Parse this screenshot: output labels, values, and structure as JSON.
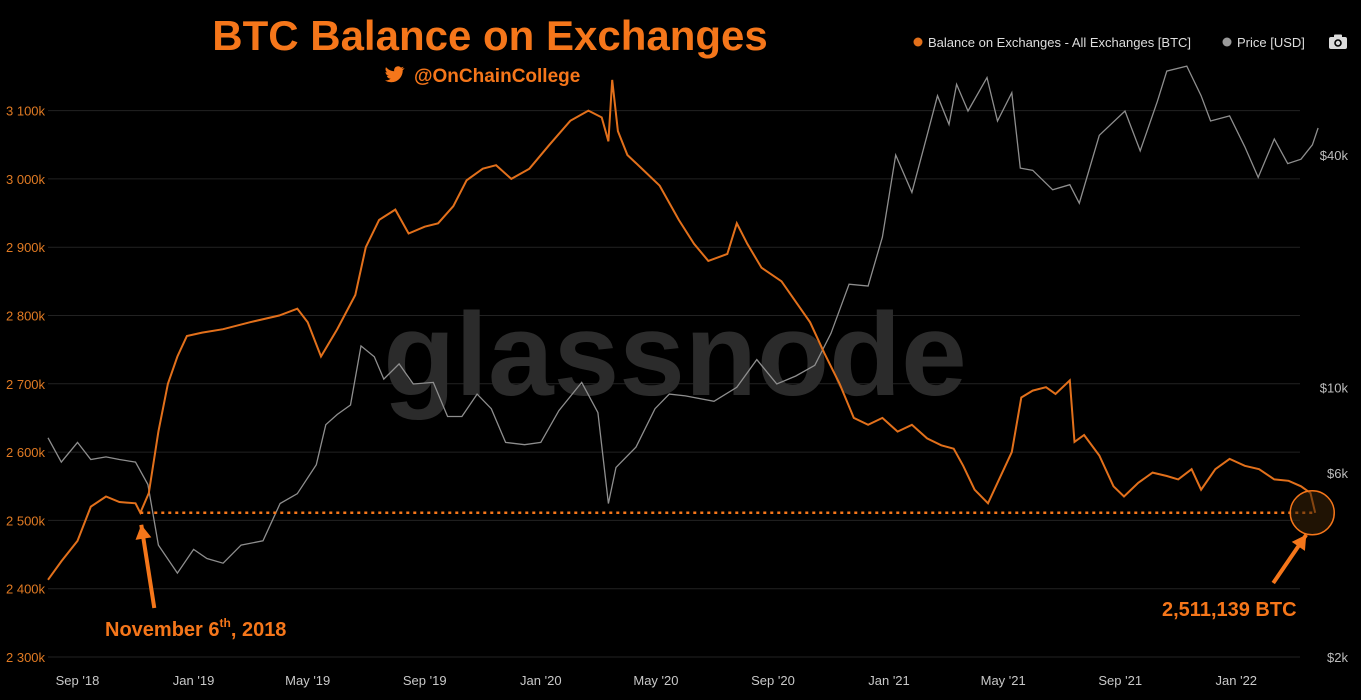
{
  "chart_data": {
    "type": "line",
    "title": "BTC Balance on Exchanges",
    "subtitle": "@OnChainCollege",
    "watermark": "glassnode",
    "x_ticks": [
      "Sep '18",
      "Jan '19",
      "May '19",
      "Sep '19",
      "Jan '20",
      "May '20",
      "Sep '20",
      "Jan '21",
      "May '21",
      "Sep '21",
      "Jan '22"
    ],
    "left_axis": {
      "ticks": [
        "2 300k",
        "2 400k",
        "2 500k",
        "2 600k",
        "2 700k",
        "2 800k",
        "2 900k",
        "3 000k",
        "3 100k"
      ],
      "ylim": [
        2300000,
        3150000
      ]
    },
    "right_axis": {
      "scale": "log",
      "ticks": [
        "$2k",
        "$6k",
        "$10k",
        "$40k"
      ]
    },
    "legend": {
      "position": "top-right",
      "items": [
        "Balance on Exchanges - All Exchanges [BTC]",
        "Price [USD]"
      ],
      "camera_icon": "camera-icon"
    },
    "series": [
      {
        "name": "Balance on Exchanges - All Exchanges [BTC]",
        "color": "#e2701b",
        "axis": "left",
        "points": [
          [
            "2018-08-01",
            2413000
          ],
          [
            "2018-08-15",
            2440000
          ],
          [
            "2018-09-01",
            2470000
          ],
          [
            "2018-09-15",
            2520000
          ],
          [
            "2018-10-01",
            2535000
          ],
          [
            "2018-10-15",
            2527000
          ],
          [
            "2018-11-01",
            2525000
          ],
          [
            "2018-11-06",
            2511139
          ],
          [
            "2018-11-15",
            2540000
          ],
          [
            "2018-11-25",
            2630000
          ],
          [
            "2018-12-05",
            2700000
          ],
          [
            "2018-12-15",
            2740000
          ],
          [
            "2018-12-25",
            2770000
          ],
          [
            "2019-01-10",
            2775000
          ],
          [
            "2019-02-01",
            2780000
          ],
          [
            "2019-03-01",
            2790000
          ],
          [
            "2019-04-01",
            2800000
          ],
          [
            "2019-04-20",
            2810000
          ],
          [
            "2019-05-01",
            2790000
          ],
          [
            "2019-05-15",
            2740000
          ],
          [
            "2019-06-01",
            2780000
          ],
          [
            "2019-06-20",
            2830000
          ],
          [
            "2019-07-01",
            2900000
          ],
          [
            "2019-07-15",
            2940000
          ],
          [
            "2019-08-01",
            2955000
          ],
          [
            "2019-08-15",
            2920000
          ],
          [
            "2019-09-01",
            2930000
          ],
          [
            "2019-09-15",
            2935000
          ],
          [
            "2019-10-01",
            2960000
          ],
          [
            "2019-10-15",
            2998000
          ],
          [
            "2019-11-01",
            3015000
          ],
          [
            "2019-11-15",
            3020000
          ],
          [
            "2019-12-01",
            3000000
          ],
          [
            "2019-12-20",
            3015000
          ],
          [
            "2020-01-10",
            3050000
          ],
          [
            "2020-02-01",
            3085000
          ],
          [
            "2020-02-20",
            3100000
          ],
          [
            "2020-03-05",
            3090000
          ],
          [
            "2020-03-12",
            3055000
          ],
          [
            "2020-03-16",
            3145000
          ],
          [
            "2020-03-22",
            3070000
          ],
          [
            "2020-04-01",
            3035000
          ],
          [
            "2020-04-20",
            3010000
          ],
          [
            "2020-05-05",
            2990000
          ],
          [
            "2020-05-25",
            2940000
          ],
          [
            "2020-06-10",
            2905000
          ],
          [
            "2020-06-25",
            2880000
          ],
          [
            "2020-07-15",
            2890000
          ],
          [
            "2020-07-25",
            2935000
          ],
          [
            "2020-08-05",
            2905000
          ],
          [
            "2020-08-20",
            2870000
          ],
          [
            "2020-09-10",
            2850000
          ],
          [
            "2020-09-25",
            2820000
          ],
          [
            "2020-10-10",
            2790000
          ],
          [
            "2020-10-25",
            2745000
          ],
          [
            "2020-11-10",
            2700000
          ],
          [
            "2020-11-25",
            2650000
          ],
          [
            "2020-12-10",
            2640000
          ],
          [
            "2020-12-25",
            2650000
          ],
          [
            "2021-01-10",
            2630000
          ],
          [
            "2021-01-25",
            2640000
          ],
          [
            "2021-02-10",
            2620000
          ],
          [
            "2021-02-25",
            2610000
          ],
          [
            "2021-03-10",
            2605000
          ],
          [
            "2021-03-20",
            2580000
          ],
          [
            "2021-04-01",
            2545000
          ],
          [
            "2021-04-15",
            2525000
          ],
          [
            "2021-04-25",
            2555000
          ],
          [
            "2021-05-10",
            2600000
          ],
          [
            "2021-05-20",
            2680000
          ],
          [
            "2021-06-01",
            2690000
          ],
          [
            "2021-06-15",
            2695000
          ],
          [
            "2021-06-25",
            2685000
          ],
          [
            "2021-07-10",
            2705000
          ],
          [
            "2021-07-15",
            2615000
          ],
          [
            "2021-07-25",
            2625000
          ],
          [
            "2021-08-10",
            2595000
          ],
          [
            "2021-08-25",
            2550000
          ],
          [
            "2021-09-05",
            2535000
          ],
          [
            "2021-09-20",
            2555000
          ],
          [
            "2021-10-05",
            2570000
          ],
          [
            "2021-10-20",
            2565000
          ],
          [
            "2021-11-01",
            2560000
          ],
          [
            "2021-11-15",
            2575000
          ],
          [
            "2021-11-25",
            2545000
          ],
          [
            "2021-12-10",
            2575000
          ],
          [
            "2021-12-25",
            2590000
          ],
          [
            "2022-01-10",
            2580000
          ],
          [
            "2022-01-25",
            2575000
          ],
          [
            "2022-02-10",
            2560000
          ],
          [
            "2022-02-25",
            2558000
          ],
          [
            "2022-03-10",
            2550000
          ],
          [
            "2022-03-20",
            2540000
          ],
          [
            "2022-03-25",
            2511139
          ]
        ]
      },
      {
        "name": "Price [USD]",
        "color": "#8e8e8e",
        "axis": "right",
        "points": [
          [
            "2018-08-01",
            7400
          ],
          [
            "2018-08-15",
            6400
          ],
          [
            "2018-09-01",
            7200
          ],
          [
            "2018-09-15",
            6500
          ],
          [
            "2018-10-01",
            6600
          ],
          [
            "2018-10-15",
            6500
          ],
          [
            "2018-11-01",
            6400
          ],
          [
            "2018-11-14",
            5600
          ],
          [
            "2018-11-25",
            3900
          ],
          [
            "2018-12-15",
            3300
          ],
          [
            "2019-01-01",
            3800
          ],
          [
            "2019-01-15",
            3600
          ],
          [
            "2019-02-01",
            3500
          ],
          [
            "2019-02-20",
            3900
          ],
          [
            "2019-03-15",
            4000
          ],
          [
            "2019-04-02",
            5000
          ],
          [
            "2019-04-20",
            5300
          ],
          [
            "2019-05-10",
            6300
          ],
          [
            "2019-05-20",
            8000
          ],
          [
            "2019-06-01",
            8500
          ],
          [
            "2019-06-15",
            9000
          ],
          [
            "2019-06-26",
            12800
          ],
          [
            "2019-07-10",
            12000
          ],
          [
            "2019-07-20",
            10500
          ],
          [
            "2019-08-05",
            11500
          ],
          [
            "2019-08-20",
            10200
          ],
          [
            "2019-09-10",
            10300
          ],
          [
            "2019-09-25",
            8400
          ],
          [
            "2019-10-10",
            8400
          ],
          [
            "2019-10-26",
            9600
          ],
          [
            "2019-11-10",
            8800
          ],
          [
            "2019-11-25",
            7200
          ],
          [
            "2019-12-15",
            7100
          ],
          [
            "2020-01-01",
            7200
          ],
          [
            "2020-01-20",
            8700
          ],
          [
            "2020-02-13",
            10300
          ],
          [
            "2020-03-01",
            8600
          ],
          [
            "2020-03-12",
            5000
          ],
          [
            "2020-03-20",
            6200
          ],
          [
            "2020-04-10",
            7000
          ],
          [
            "2020-04-30",
            8800
          ],
          [
            "2020-05-15",
            9600
          ],
          [
            "2020-06-01",
            9500
          ],
          [
            "2020-07-01",
            9200
          ],
          [
            "2020-07-25",
            10000
          ],
          [
            "2020-08-15",
            11800
          ],
          [
            "2020-09-05",
            10200
          ],
          [
            "2020-09-25",
            10700
          ],
          [
            "2020-10-15",
            11400
          ],
          [
            "2020-11-01",
            13800
          ],
          [
            "2020-11-20",
            18500
          ],
          [
            "2020-12-10",
            18300
          ],
          [
            "2020-12-25",
            24500
          ],
          [
            "2021-01-08",
            40000
          ],
          [
            "2021-01-25",
            32000
          ],
          [
            "2021-02-10",
            45000
          ],
          [
            "2021-02-21",
            57000
          ],
          [
            "2021-03-05",
            48000
          ],
          [
            "2021-03-13",
            61000
          ],
          [
            "2021-03-25",
            52000
          ],
          [
            "2021-04-14",
            63500
          ],
          [
            "2021-04-25",
            49000
          ],
          [
            "2021-05-10",
            58000
          ],
          [
            "2021-05-19",
            37000
          ],
          [
            "2021-06-01",
            36500
          ],
          [
            "2021-06-22",
            32500
          ],
          [
            "2021-07-10",
            33500
          ],
          [
            "2021-07-20",
            30000
          ],
          [
            "2021-08-10",
            45000
          ],
          [
            "2021-09-06",
            52000
          ],
          [
            "2021-09-22",
            41000
          ],
          [
            "2021-10-10",
            55000
          ],
          [
            "2021-10-20",
            66000
          ],
          [
            "2021-11-10",
            68000
          ],
          [
            "2021-11-25",
            57000
          ],
          [
            "2021-12-05",
            49000
          ],
          [
            "2021-12-25",
            50500
          ],
          [
            "2022-01-10",
            42000
          ],
          [
            "2022-01-24",
            35000
          ],
          [
            "2022-02-10",
            44000
          ],
          [
            "2022-02-24",
            38000
          ],
          [
            "2022-03-10",
            39000
          ],
          [
            "2022-03-22",
            42500
          ],
          [
            "2022-03-28",
            47000
          ]
        ]
      }
    ],
    "reference_line": {
      "value": 2511139,
      "style": "dotted",
      "color": "#f5761a"
    },
    "annotations": [
      {
        "text": "November 6",
        "superscript": "th",
        "suffix": ", 2018",
        "target_date": "2018-11-06",
        "target_value": 2511139
      },
      {
        "text": "2,511,139 BTC",
        "target_date": "2022-03-25",
        "target_value": 2511139
      }
    ]
  }
}
